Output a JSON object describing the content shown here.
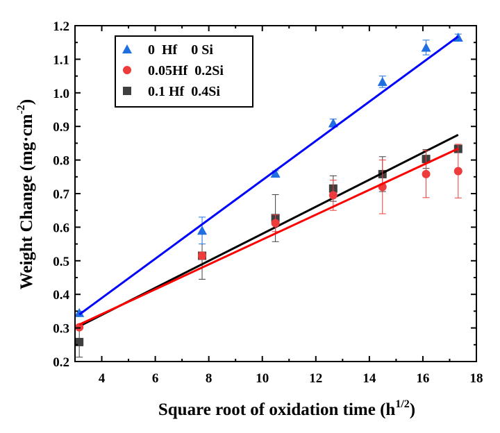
{
  "chart_data": {
    "type": "scatter",
    "xlabel": "Square root of oxidation time (h",
    "xlabel_sup": "1/2",
    "xlabel_close": ")",
    "ylabel": "Weight Change (mg·cm",
    "ylabel_sup": "-2",
    "ylabel_close": ")",
    "xlim": [
      3.0,
      18.0
    ],
    "ylim": [
      0.2,
      1.2
    ],
    "xticks": [
      4,
      6,
      8,
      10,
      12,
      14,
      16,
      18
    ],
    "yticks": [
      0.2,
      0.3,
      0.4,
      0.5,
      0.6,
      0.7,
      0.8,
      0.9,
      1.0,
      1.1,
      1.2
    ],
    "grid": false,
    "legend_position": "top-left",
    "series": [
      {
        "name": "0  Hf    0 Si",
        "marker": "triangle",
        "color": "#1f6fe0",
        "fit_color": "#0000ff",
        "x": [
          3.16,
          7.75,
          10.49,
          12.65,
          14.49,
          16.12,
          17.32
        ],
        "y": [
          0.345,
          0.59,
          0.76,
          0.91,
          1.033,
          1.135,
          1.165
        ],
        "err": [
          0.005,
          0.04,
          0.008,
          0.012,
          0.017,
          0.022,
          0.01
        ],
        "fit": {
          "x": [
            3.16,
            17.32
          ],
          "y": [
            0.34,
            1.168
          ]
        }
      },
      {
        "name": "0.05Hf  0.2Si",
        "marker": "circle",
        "color": "#ee3b3b",
        "fit_color": "#ff0000",
        "x": [
          3.16,
          7.75,
          10.49,
          12.65,
          14.49,
          16.12,
          17.32
        ],
        "y": [
          0.302,
          0.515,
          0.612,
          0.695,
          0.72,
          0.758,
          0.767
        ],
        "err": [
          0.005,
          0.01,
          0.025,
          0.045,
          0.08,
          0.07,
          0.08
        ],
        "fit": {
          "x": [
            3.16,
            17.32
          ],
          "y": [
            0.31,
            0.834
          ]
        }
      },
      {
        "name": "0.1 Hf  0.4Si",
        "marker": "square",
        "color": "#3f3f3f",
        "fit_color": "#000000",
        "x": [
          3.16,
          7.75,
          10.49,
          12.65,
          14.49,
          16.12,
          17.32
        ],
        "y": [
          0.258,
          0.515,
          0.627,
          0.715,
          0.758,
          0.803,
          0.833
        ],
        "err": [
          0.045,
          0.07,
          0.07,
          0.038,
          0.052,
          0.028,
          0.006
        ],
        "fit": {
          "x": [
            3.16,
            17.32
          ],
          "y": [
            0.305,
            0.875
          ]
        }
      }
    ]
  }
}
